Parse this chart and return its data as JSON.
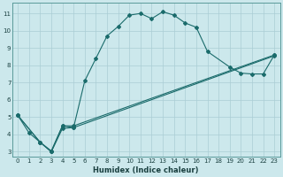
{
  "xlabel": "Humidex (Indice chaleur)",
  "xlim": [
    -0.5,
    23.5
  ],
  "ylim": [
    2.7,
    11.6
  ],
  "xticks": [
    0,
    1,
    2,
    3,
    4,
    5,
    6,
    7,
    8,
    9,
    10,
    11,
    12,
    13,
    14,
    15,
    16,
    17,
    18,
    19,
    20,
    21,
    22,
    23
  ],
  "yticks": [
    3,
    4,
    5,
    6,
    7,
    8,
    9,
    10,
    11
  ],
  "bg_color": "#cce8ec",
  "line_color": "#1a6b6b",
  "grid_color": "#aacdd4",
  "curve1_x": [
    0,
    1,
    2,
    3,
    4,
    5,
    6,
    7,
    8,
    9,
    10,
    11,
    12,
    13,
    14,
    15,
    16,
    17,
    19,
    20,
    21,
    22,
    23
  ],
  "curve1_y": [
    5.1,
    4.1,
    3.55,
    3.0,
    4.5,
    4.4,
    7.1,
    8.4,
    9.7,
    10.25,
    10.9,
    11.0,
    10.7,
    11.1,
    10.9,
    10.45,
    10.2,
    8.8,
    7.9,
    7.55,
    7.5,
    7.5,
    8.6
  ],
  "line2_x": [
    0,
    2,
    3,
    4,
    5,
    23
  ],
  "line2_y": [
    5.1,
    3.55,
    3.05,
    4.5,
    4.5,
    8.6
  ],
  "line3_x": [
    0,
    2,
    3,
    4,
    5,
    23
  ],
  "line3_y": [
    5.1,
    3.55,
    3.0,
    4.35,
    4.4,
    8.55
  ],
  "title_fontsize": 6,
  "tick_fontsize": 5,
  "xlabel_fontsize": 6
}
